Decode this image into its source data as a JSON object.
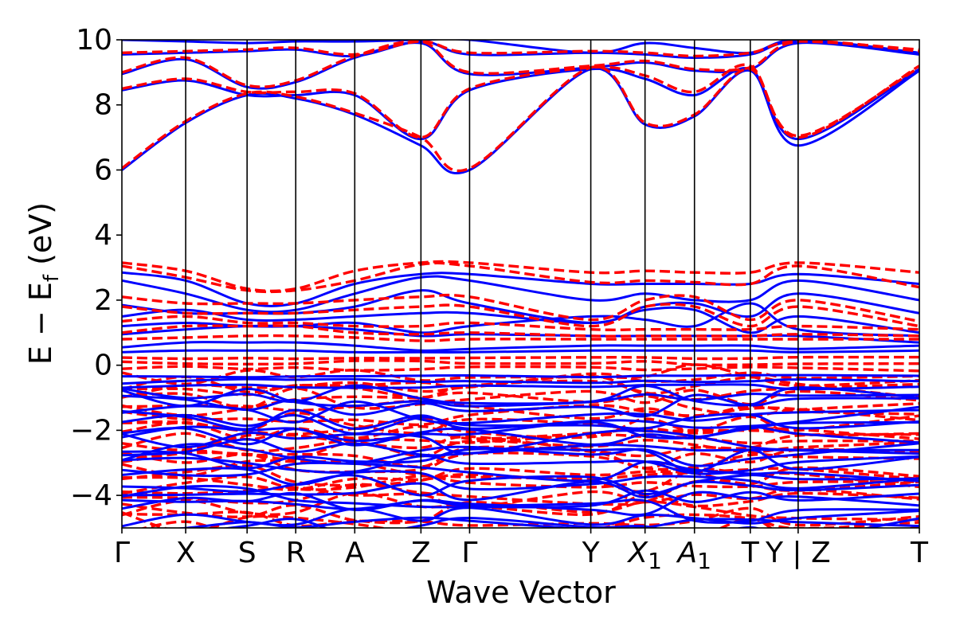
{
  "chart_data": {
    "type": "line",
    "title": "",
    "xlabel": "Wave Vector",
    "ylabel": "E − E",
    "ylabel_sub": "f",
    "ylabel_unit": " (eV)",
    "ylim": [
      -5,
      10
    ],
    "yticks": [
      -4,
      -2,
      0,
      2,
      4,
      6,
      8,
      10
    ],
    "ytick_labels": [
      "−4",
      "−2",
      "0",
      "2",
      "4",
      "6",
      "8",
      "10"
    ],
    "kpath": [
      {
        "label": "Γ",
        "x": 0.0
      },
      {
        "label": "X",
        "x": 0.08
      },
      {
        "label": "S",
        "x": 0.157
      },
      {
        "label": "R",
        "x": 0.218
      },
      {
        "label": "A",
        "x": 0.292
      },
      {
        "label": "Z",
        "x": 0.375
      },
      {
        "label": "Γ",
        "x": 0.436
      },
      {
        "label": "Y",
        "x": 0.588
      },
      {
        "label": "X",
        "sub": "1",
        "x": 0.656
      },
      {
        "label": "A",
        "sub": "1",
        "x": 0.718
      },
      {
        "label": "T",
        "x": 0.788
      },
      {
        "label": "Y | Z",
        "x": 0.848
      },
      {
        "label": "T",
        "x": 1.0
      }
    ],
    "grid": false,
    "legend": "none",
    "series": [
      {
        "style": "solid",
        "color": "#0000ff",
        "bands": [
          {
            "x": [
              0,
              0.08,
              0.157,
              0.218,
              0.292,
              0.375,
              0.436,
              0.588,
              0.656,
              0.718,
              0.788,
              0.848,
              1.0
            ],
            "y": [
              6.0,
              7.45,
              8.3,
              8.2,
              7.7,
              6.75,
              6.0,
              9.1,
              7.4,
              7.65,
              9.05,
              6.75,
              9.05
            ]
          },
          {
            "x": [
              0,
              0.08,
              0.157,
              0.218,
              0.292,
              0.375,
              0.436,
              0.588,
              0.656,
              0.718,
              0.788,
              0.848,
              1.0
            ],
            "y": [
              8.45,
              8.75,
              8.3,
              8.3,
              8.3,
              6.95,
              8.45,
              9.1,
              8.8,
              8.3,
              9.1,
              6.95,
              9.1
            ]
          },
          {
            "x": [
              0,
              0.08,
              0.157,
              0.218,
              0.292,
              0.375,
              0.436,
              0.588,
              0.656,
              0.718,
              0.788,
              0.848,
              1.0
            ],
            "y": [
              8.95,
              9.4,
              8.55,
              8.7,
              9.45,
              9.9,
              8.95,
              9.15,
              9.3,
              9.05,
              9.1,
              9.9,
              9.55
            ]
          },
          {
            "x": [
              0,
              0.08,
              0.157,
              0.218,
              0.292,
              0.375,
              0.436,
              0.588,
              0.656,
              0.718,
              0.788,
              0.848,
              1.0
            ],
            "y": [
              9.55,
              9.6,
              9.65,
              9.7,
              9.5,
              9.95,
              9.55,
              9.6,
              9.55,
              9.45,
              9.55,
              9.95,
              9.6
            ]
          },
          {
            "x": [
              0,
              0.08,
              0.157,
              0.218,
              0.292,
              0.375,
              0.436,
              0.588,
              0.656,
              0.718,
              0.788,
              0.848,
              1.0
            ],
            "y": [
              10.0,
              9.95,
              9.9,
              9.95,
              9.95,
              10.0,
              10.0,
              9.6,
              9.9,
              9.75,
              9.6,
              10.0,
              9.6
            ]
          },
          {
            "x": [
              0,
              0.08,
              0.157,
              0.218,
              0.292,
              0.375,
              0.436,
              0.588,
              0.656,
              0.718,
              0.788,
              0.848,
              1.0
            ],
            "y": [
              2.85,
              2.6,
              1.9,
              1.9,
              2.5,
              2.8,
              2.8,
              2.5,
              2.5,
              2.5,
              2.5,
              2.8,
              2.5
            ]
          },
          {
            "x": [
              0,
              0.08,
              0.157,
              0.218,
              0.292,
              0.375,
              0.436,
              0.588,
              0.656,
              0.718,
              0.788,
              0.848,
              1.0
            ],
            "y": [
              2.6,
              2.2,
              1.7,
              1.7,
              2.2,
              2.7,
              2.6,
              2.0,
              2.2,
              2.0,
              2.0,
              2.6,
              2.0
            ]
          },
          {
            "x": [
              0,
              0.08,
              0.157,
              0.218,
              0.292,
              0.375,
              0.436,
              0.588,
              0.656,
              0.718,
              0.788,
              0.848,
              1.0
            ],
            "y": [
              1.85,
              1.6,
              1.6,
              1.6,
              1.8,
              2.3,
              1.9,
              1.3,
              1.8,
              1.9,
              1.5,
              2.2,
              1.6
            ]
          },
          {
            "x": [
              0,
              0.08,
              0.157,
              0.218,
              0.292,
              0.375,
              0.436,
              0.588,
              0.656,
              0.718,
              0.788,
              0.848,
              1.0
            ],
            "y": [
              1.5,
              1.7,
              1.4,
              1.4,
              1.5,
              1.6,
              1.6,
              1.3,
              1.7,
              1.7,
              1.0,
              1.5,
              1.0
            ]
          },
          {
            "x": [
              0,
              0.08,
              0.157,
              0.218,
              0.292,
              0.375,
              0.436,
              0.588,
              0.656,
              0.718,
              0.788,
              0.848,
              1.0
            ],
            "y": [
              1.2,
              1.3,
              1.2,
              1.2,
              1.3,
              1.0,
              1.2,
              1.5,
              1.4,
              1.2,
              1.9,
              1.1,
              0.9
            ]
          },
          {
            "x": [
              0,
              0.08,
              0.157,
              0.218,
              0.292,
              0.375,
              0.436,
              0.588,
              0.656,
              0.718,
              0.788,
              0.848,
              1.0
            ],
            "y": [
              0.95,
              1.1,
              1.2,
              1.2,
              1.1,
              0.9,
              0.95,
              0.9,
              0.9,
              0.9,
              0.9,
              0.9,
              0.7
            ]
          },
          {
            "x": [
              0,
              0.08,
              0.157,
              0.218,
              0.292,
              0.375,
              0.436,
              0.588,
              0.656,
              0.718,
              0.788,
              0.848,
              1.0
            ],
            "y": [
              0.55,
              0.7,
              0.7,
              0.7,
              0.6,
              0.45,
              0.5,
              0.6,
              0.6,
              0.6,
              0.6,
              0.5,
              0.6
            ]
          },
          {
            "x": [
              0,
              0.08,
              0.157,
              0.218,
              0.292,
              0.375,
              0.436,
              0.588,
              0.656,
              0.718,
              0.788,
              0.848,
              1.0
            ],
            "y": [
              0.4,
              0.45,
              0.45,
              0.45,
              0.4,
              0.4,
              0.4,
              0.45,
              0.45,
              0.45,
              0.45,
              0.4,
              0.45
            ]
          }
        ]
      },
      {
        "style": "dashed",
        "color": "#ff0000",
        "bands": [
          {
            "x": [
              0,
              0.08,
              0.157,
              0.218,
              0.292,
              0.375,
              0.436,
              0.588,
              0.656,
              0.718,
              0.788,
              0.848,
              1.0
            ],
            "y": [
              6.05,
              7.5,
              8.35,
              8.25,
              7.75,
              7.0,
              6.05,
              9.15,
              7.45,
              7.7,
              9.1,
              7.05,
              9.15
            ]
          },
          {
            "x": [
              0,
              0.08,
              0.157,
              0.218,
              0.292,
              0.375,
              0.436,
              0.588,
              0.656,
              0.718,
              0.788,
              0.848,
              1.0
            ],
            "y": [
              8.5,
              8.8,
              8.4,
              8.4,
              8.35,
              7.0,
              8.5,
              9.15,
              8.9,
              8.4,
              9.2,
              7.0,
              9.2
            ]
          },
          {
            "x": [
              0,
              0.08,
              0.157,
              0.218,
              0.292,
              0.375,
              0.436,
              0.588,
              0.656,
              0.718,
              0.788,
              0.848,
              1.0
            ],
            "y": [
              9.0,
              9.45,
              8.6,
              8.75,
              9.5,
              9.95,
              9.0,
              9.2,
              9.35,
              9.1,
              9.15,
              9.95,
              9.65
            ]
          },
          {
            "x": [
              0,
              0.08,
              0.157,
              0.218,
              0.292,
              0.375,
              0.436,
              0.588,
              0.656,
              0.718,
              0.788,
              0.848,
              1.0
            ],
            "y": [
              9.6,
              9.65,
              9.7,
              9.75,
              9.55,
              9.95,
              9.6,
              9.65,
              9.6,
              9.5,
              9.6,
              9.95,
              9.7
            ]
          },
          {
            "x": [
              0,
              0.08,
              0.157,
              0.218,
              0.292,
              0.375,
              0.436,
              0.588,
              0.656,
              0.718,
              0.788,
              0.848,
              1.0
            ],
            "y": [
              3.15,
              2.9,
              2.35,
              2.35,
              2.9,
              3.15,
              3.15,
              2.85,
              2.9,
              2.85,
              2.85,
              3.15,
              2.85
            ]
          },
          {
            "x": [
              0,
              0.08,
              0.157,
              0.218,
              0.292,
              0.375,
              0.436,
              0.588,
              0.656,
              0.718,
              0.788,
              0.848,
              1.0
            ],
            "y": [
              3.05,
              2.7,
              2.3,
              2.3,
              2.6,
              3.1,
              3.05,
              2.55,
              2.6,
              2.55,
              2.5,
              3.05,
              2.4
            ]
          },
          {
            "x": [
              0,
              0.08,
              0.157,
              0.218,
              0.292,
              0.375,
              0.436,
              0.588,
              0.656,
              0.718,
              0.788,
              0.848,
              1.0
            ],
            "y": [
              2.1,
              1.9,
              1.9,
              1.9,
              2.0,
              2.1,
              2.1,
              1.4,
              2.0,
              2.1,
              1.4,
              2.0,
              1.35
            ]
          },
          {
            "x": [
              0,
              0.08,
              0.157,
              0.218,
              0.292,
              0.375,
              0.436,
              0.588,
              0.656,
              0.718,
              0.788,
              0.848,
              1.0
            ],
            "y": [
              1.8,
              1.6,
              1.6,
              1.6,
              1.7,
              1.8,
              1.8,
              1.2,
              1.8,
              1.8,
              1.2,
              1.8,
              1.2
            ]
          },
          {
            "x": [
              0,
              0.08,
              0.157,
              0.218,
              0.292,
              0.375,
              0.436,
              0.588,
              0.656,
              0.718,
              0.788,
              0.848,
              1.0
            ],
            "y": [
              1.35,
              1.5,
              1.3,
              1.3,
              1.2,
              1.2,
              1.3,
              1.1,
              1.1,
              1.1,
              1.1,
              1.2,
              1.1
            ]
          },
          {
            "x": [
              0,
              0.08,
              0.157,
              0.218,
              0.292,
              0.375,
              0.436,
              0.588,
              0.656,
              0.718,
              0.788,
              0.848,
              1.0
            ],
            "y": [
              1.0,
              1.2,
              1.2,
              1.2,
              1.0,
              0.95,
              1.0,
              0.9,
              0.9,
              0.9,
              0.9,
              0.95,
              0.9
            ]
          },
          {
            "x": [
              0,
              0.08,
              0.157,
              0.218,
              0.292,
              0.375,
              0.436,
              0.588,
              0.656,
              0.718,
              0.788,
              0.848,
              1.0
            ],
            "y": [
              0.8,
              0.85,
              0.9,
              0.9,
              0.85,
              0.75,
              0.8,
              0.8,
              0.8,
              0.8,
              0.8,
              0.8,
              0.8
            ]
          }
        ]
      }
    ],
    "valence_region": {
      "blue_band_count": 26,
      "blue_range": [
        -5.0,
        -0.3
      ],
      "red_band_count": 30,
      "red_range": [
        -5.0,
        0.25
      ]
    }
  }
}
